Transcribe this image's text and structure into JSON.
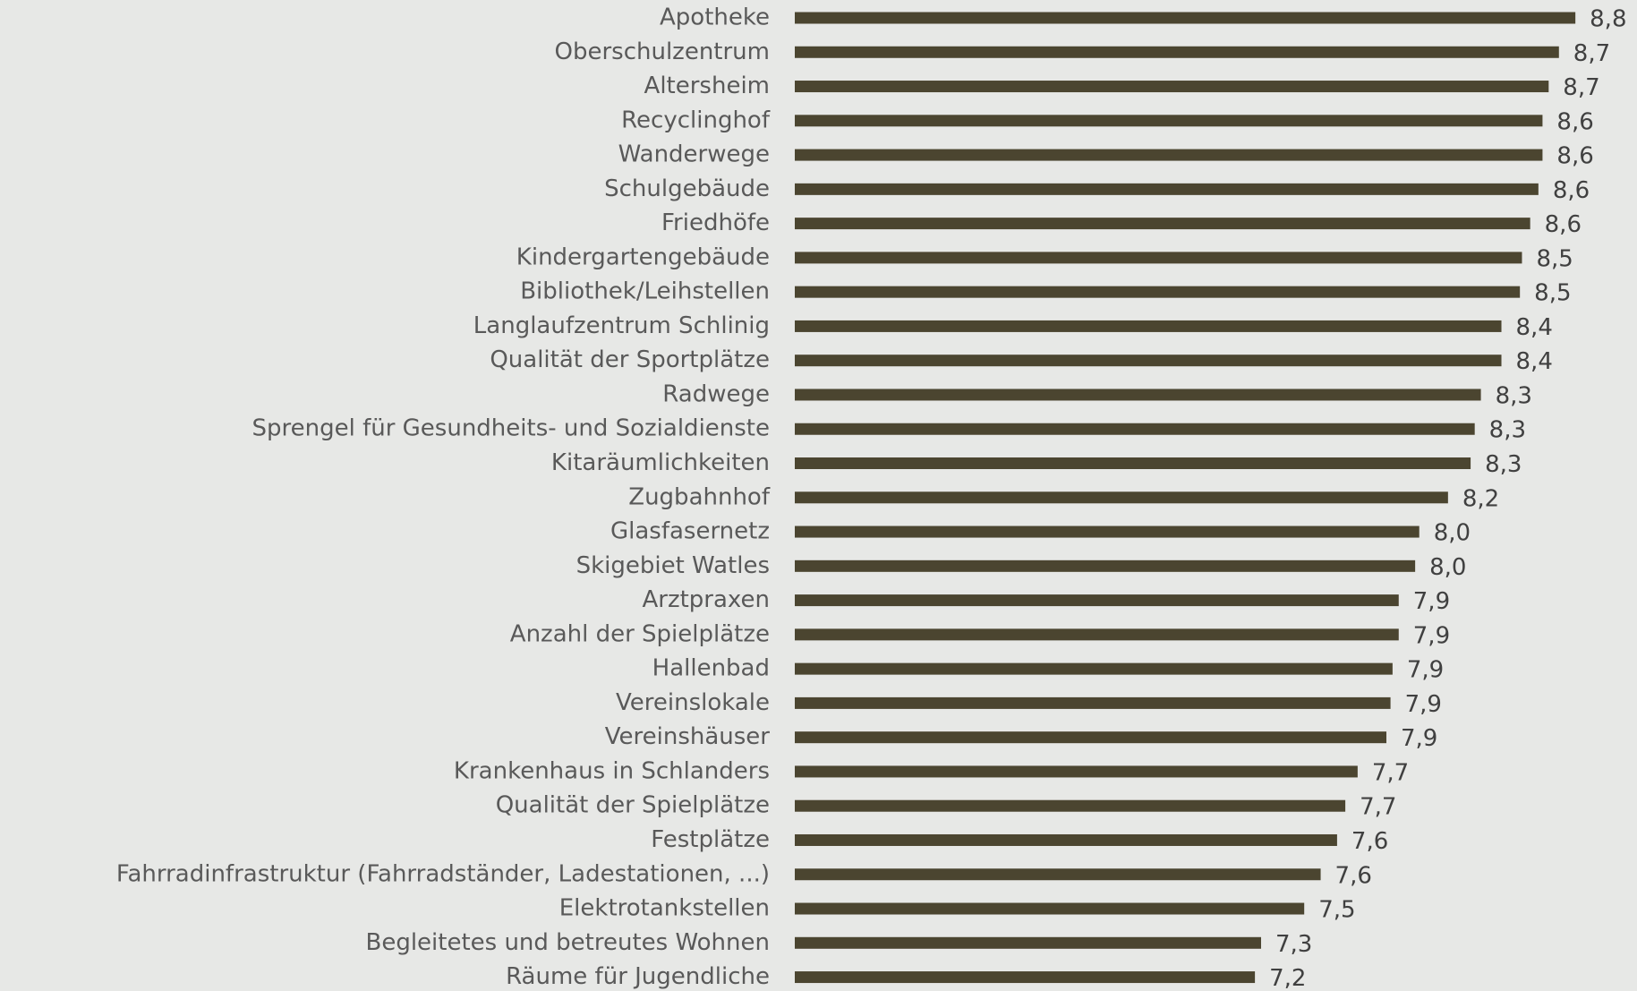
{
  "chart_data": {
    "type": "barh",
    "color": "#4b4530",
    "categories": [
      "Apotheke",
      "Oberschulzentrum",
      "Altersheim",
      "Recyclinghof",
      "Wanderwege",
      "Schulgebäude",
      "Friedhöfe",
      "Kindergartengebäude",
      "Bibliothek/Leihstellen",
      "Langlaufzentrum Schlinig",
      "Qualität der Sportplätze",
      "Radwege",
      "Sprengel für Gesundheits- und Sozialdienste",
      "Kitaräumlichkeiten",
      "Zugbahnhof",
      "Glasfasernetz",
      "Skigebiet Watles",
      "Arztpraxen",
      "Anzahl der Spielplätze",
      "Hallenbad",
      "Vereinslokale",
      "Vereinshäuser",
      "Krankenhaus in Schlanders",
      "Qualität der Spielplätze",
      "Festplätze",
      "Fahrradinfrastruktur (Fahrradständer, Ladestationen, ...)",
      "Elektrotankstellen",
      "Begleitetes und betreutes Wohnen",
      "Räume für Jugendliche"
    ],
    "values": [
      8.8,
      8.72,
      8.67,
      8.64,
      8.64,
      8.62,
      8.58,
      8.54,
      8.53,
      8.44,
      8.44,
      8.34,
      8.31,
      8.29,
      8.18,
      8.04,
      8.02,
      7.94,
      7.94,
      7.91,
      7.9,
      7.88,
      7.74,
      7.68,
      7.64,
      7.56,
      7.48,
      7.27,
      7.24
    ],
    "value_labels": [
      "8,8",
      "8,7",
      "8,7",
      "8,6",
      "8,6",
      "8,6",
      "8,6",
      "8,5",
      "8,5",
      "8,4",
      "8,4",
      "8,3",
      "8,3",
      "8,3",
      "8,2",
      "8,0",
      "8,0",
      "7,9",
      "7,9",
      "7,9",
      "7,9",
      "7,9",
      "7,7",
      "7,7",
      "7,6",
      "7,6",
      "7,5",
      "7,3",
      "7,2"
    ],
    "xlim": [
      5,
      9.1
    ]
  }
}
